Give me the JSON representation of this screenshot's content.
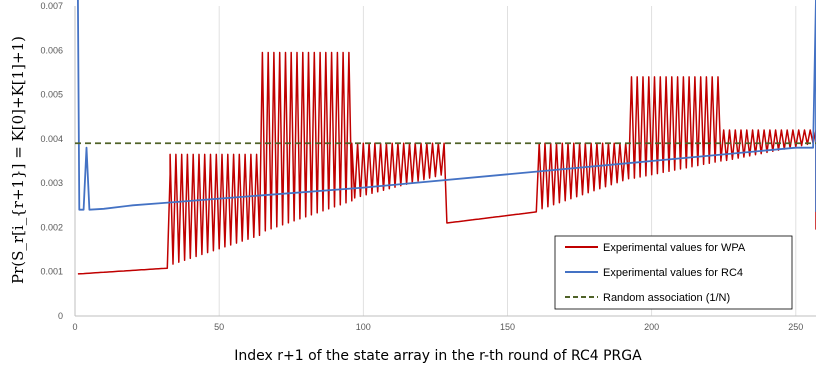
{
  "chart_data": {
    "type": "line",
    "xlabel": "Index r+1 of the state array in the r-th round of RC4 PRGA",
    "ylabel": "Pr(S_r[i_{r+1}] = K[0]+K[1]+1)",
    "xlim": [
      0,
      257
    ],
    "ylim": [
      0,
      0.007
    ],
    "x_ticks": [
      0,
      50,
      100,
      150,
      200,
      250
    ],
    "y_ticks": [
      0,
      0.001,
      0.002,
      0.003,
      0.004,
      0.005,
      0.006,
      0.007
    ],
    "y_tick_labels": [
      "0",
      "0.001",
      "0.002",
      "0.003",
      "0.004",
      "0.005",
      "0.006",
      "0.007"
    ],
    "grid": "vertical",
    "legend_position": "bottom-right",
    "series": [
      {
        "name": "Experimental values for WPA",
        "color": "#c00000",
        "pattern": [
          {
            "x_start": 1,
            "x_end": 32,
            "kind": "ramp",
            "from": 0.00095,
            "to": 0.00108
          },
          {
            "x_start": 33,
            "x_end": 64,
            "kind": "zigzag",
            "high": 0.00365,
            "low_from": 0.00115,
            "low_to": 0.00182
          },
          {
            "x_start": 65,
            "x_end": 96,
            "kind": "zigzag",
            "high": 0.00595,
            "low_from": 0.0019,
            "low_to": 0.0026
          },
          {
            "x_start": 96,
            "x_end": 128,
            "kind": "zigzag",
            "high": 0.0039,
            "low_from": 0.00265,
            "low_to": 0.0032
          },
          {
            "x_start": 129,
            "x_end": 160,
            "kind": "ramp",
            "from": 0.0021,
            "to": 0.00235
          },
          {
            "x_start": 161,
            "x_end": 192,
            "kind": "zigzag",
            "high": 0.0039,
            "low_from": 0.0024,
            "low_to": 0.0031
          },
          {
            "x_start": 193,
            "x_end": 224,
            "kind": "zigzag",
            "high": 0.0054,
            "low_from": 0.0031,
            "low_to": 0.0035
          },
          {
            "x_start": 225,
            "x_end": 256,
            "kind": "zigzag",
            "high": 0.0042,
            "low_from": 0.0035,
            "low_to": 0.0039
          }
        ],
        "spikes": [
          {
            "x": 33,
            "y": 0.0032
          },
          {
            "x": 257,
            "y": 0.0042
          },
          {
            "x": 257,
            "y": 0.00195
          }
        ]
      },
      {
        "name": "Experimental values for RC4",
        "color": "#4472c4",
        "points": [
          [
            1,
            0.0072
          ],
          [
            1.5,
            0.0024
          ],
          [
            3,
            0.0024
          ],
          [
            4,
            0.0038
          ],
          [
            5,
            0.0024
          ],
          [
            10,
            0.00242
          ],
          [
            20,
            0.0025
          ],
          [
            30,
            0.00255
          ],
          [
            50,
            0.00265
          ],
          [
            100,
            0.0029
          ],
          [
            150,
            0.0032
          ],
          [
            200,
            0.0035
          ],
          [
            250,
            0.0038
          ],
          [
            256,
            0.0038
          ],
          [
            257,
            0.0072
          ],
          [
            257,
            0.00235
          ]
        ]
      },
      {
        "name": "Random association (1/N)",
        "color": "#4f6228",
        "style": "dashed",
        "constant": 0.0039
      }
    ]
  }
}
